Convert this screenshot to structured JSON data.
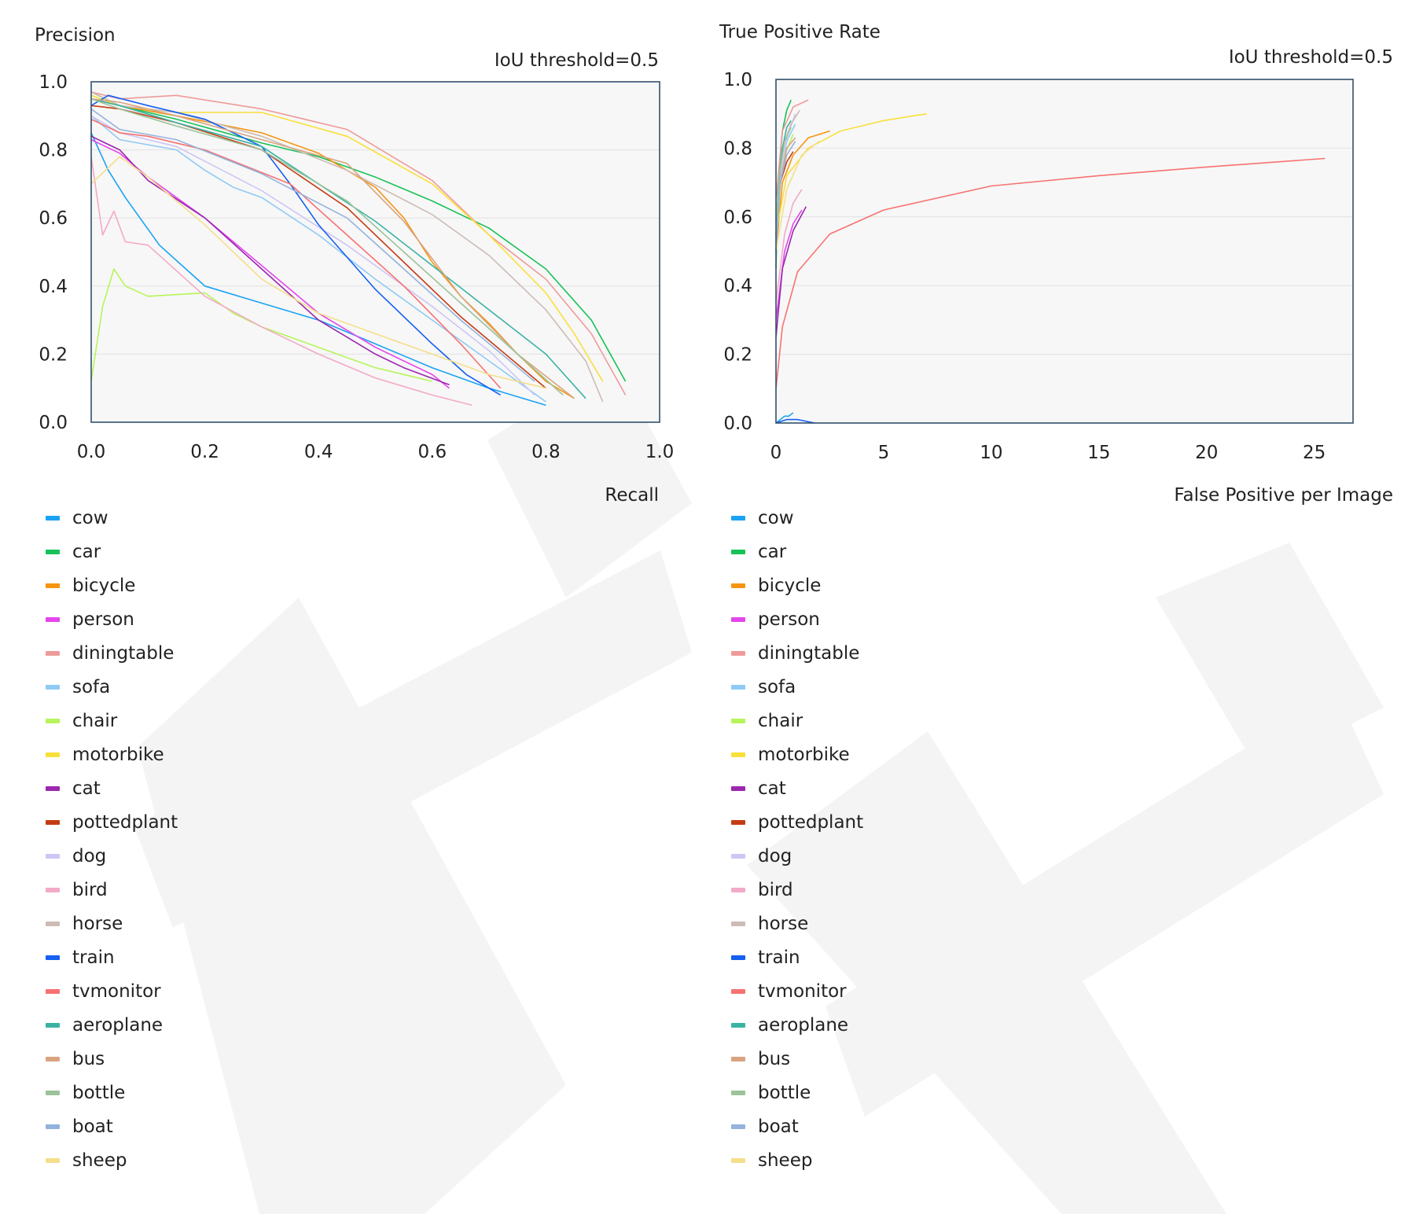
{
  "classes": [
    {
      "name": "cow",
      "color": "#1aa3f5"
    },
    {
      "name": "car",
      "color": "#17c257"
    },
    {
      "name": "bicycle",
      "color": "#f5950f"
    },
    {
      "name": "person",
      "color": "#e446ee"
    },
    {
      "name": "diningtable",
      "color": "#ef9a9a"
    },
    {
      "name": "sofa",
      "color": "#8fcaf5"
    },
    {
      "name": "chair",
      "color": "#b6f55a"
    },
    {
      "name": "motorbike",
      "color": "#f8e03a"
    },
    {
      "name": "cat",
      "color": "#9c27b0"
    },
    {
      "name": "pottedplant",
      "color": "#c43c14"
    },
    {
      "name": "dog",
      "color": "#cdc6f5"
    },
    {
      "name": "bird",
      "color": "#f3a9c8"
    },
    {
      "name": "horse",
      "color": "#cdbcb6"
    },
    {
      "name": "train",
      "color": "#1560f0"
    },
    {
      "name": "tvmonitor",
      "color": "#f77272"
    },
    {
      "name": "aeroplane",
      "color": "#3bb3a3"
    },
    {
      "name": "bus",
      "color": "#d8a480"
    },
    {
      "name": "bottle",
      "color": "#9cc39a"
    },
    {
      "name": "boat",
      "color": "#93b3dc"
    },
    {
      "name": "sheep",
      "color": "#f4df8a"
    }
  ],
  "chart_data": [
    {
      "type": "line",
      "ylabel": "Precision",
      "xlabel": "Recall",
      "annotation": "IoU threshold=0.5",
      "xlim": [
        0,
        1.0
      ],
      "ylim": [
        0,
        1.0
      ],
      "xticks": [
        "0.0",
        "0.2",
        "0.4",
        "0.6",
        "0.8",
        "1.0"
      ],
      "yticks": [
        "0.0",
        "0.2",
        "0.4",
        "0.6",
        "0.8",
        "1.0"
      ],
      "grid": "horizontal",
      "series": [
        {
          "name": "cow",
          "x": [
            0,
            0.03,
            0.06,
            0.12,
            0.2,
            0.3,
            0.4,
            0.5,
            0.6,
            0.7,
            0.8
          ],
          "y": [
            0.85,
            0.74,
            0.66,
            0.52,
            0.4,
            0.35,
            0.3,
            0.23,
            0.16,
            0.1,
            0.05
          ]
        },
        {
          "name": "car",
          "x": [
            0,
            0.05,
            0.15,
            0.3,
            0.4,
            0.5,
            0.6,
            0.7,
            0.8,
            0.88,
            0.94
          ],
          "y": [
            0.97,
            0.93,
            0.89,
            0.82,
            0.78,
            0.72,
            0.65,
            0.57,
            0.45,
            0.3,
            0.12
          ]
        },
        {
          "name": "bicycle",
          "x": [
            0,
            0.05,
            0.15,
            0.3,
            0.4,
            0.5,
            0.55,
            0.6,
            0.65,
            0.7,
            0.75,
            0.8,
            0.85
          ],
          "y": [
            0.95,
            0.93,
            0.9,
            0.85,
            0.79,
            0.69,
            0.6,
            0.47,
            0.37,
            0.29,
            0.2,
            0.12,
            0.07
          ]
        },
        {
          "name": "person",
          "x": [
            0,
            0.05,
            0.1,
            0.2,
            0.3,
            0.4,
            0.5,
            0.6,
            0.63
          ],
          "y": [
            0.83,
            0.79,
            0.72,
            0.6,
            0.46,
            0.32,
            0.22,
            0.14,
            0.1
          ]
        },
        {
          "name": "diningtable",
          "x": [
            0,
            0.05,
            0.15,
            0.3,
            0.45,
            0.6,
            0.7,
            0.8,
            0.88,
            0.94
          ],
          "y": [
            0.97,
            0.95,
            0.96,
            0.92,
            0.86,
            0.71,
            0.55,
            0.42,
            0.26,
            0.08
          ]
        },
        {
          "name": "sofa",
          "x": [
            0,
            0.05,
            0.15,
            0.2,
            0.25,
            0.3,
            0.4,
            0.5,
            0.6,
            0.7,
            0.8
          ],
          "y": [
            0.9,
            0.83,
            0.8,
            0.74,
            0.69,
            0.66,
            0.55,
            0.42,
            0.3,
            0.18,
            0.06
          ]
        },
        {
          "name": "chair",
          "x": [
            0,
            0.02,
            0.04,
            0.06,
            0.1,
            0.2,
            0.25,
            0.3,
            0.4,
            0.5,
            0.6
          ],
          "y": [
            0.12,
            0.34,
            0.45,
            0.4,
            0.37,
            0.38,
            0.32,
            0.28,
            0.22,
            0.16,
            0.12
          ]
        },
        {
          "name": "motorbike",
          "x": [
            0,
            0.05,
            0.15,
            0.3,
            0.45,
            0.6,
            0.7,
            0.8,
            0.85,
            0.9
          ],
          "y": [
            0.96,
            0.93,
            0.91,
            0.91,
            0.84,
            0.7,
            0.55,
            0.38,
            0.26,
            0.12
          ]
        },
        {
          "name": "cat",
          "x": [
            0,
            0.05,
            0.1,
            0.2,
            0.3,
            0.4,
            0.5,
            0.55,
            0.63
          ],
          "y": [
            0.84,
            0.8,
            0.71,
            0.6,
            0.45,
            0.3,
            0.2,
            0.16,
            0.11
          ]
        },
        {
          "name": "pottedplant",
          "x": [
            0,
            0.05,
            0.15,
            0.3,
            0.45,
            0.55,
            0.65,
            0.75,
            0.8
          ],
          "y": [
            0.93,
            0.92,
            0.88,
            0.8,
            0.63,
            0.47,
            0.31,
            0.17,
            0.1
          ]
        },
        {
          "name": "dog",
          "x": [
            0,
            0.05,
            0.15,
            0.3,
            0.45,
            0.6,
            0.7,
            0.78
          ],
          "y": [
            0.9,
            0.85,
            0.81,
            0.68,
            0.52,
            0.34,
            0.21,
            0.08
          ]
        },
        {
          "name": "bird",
          "x": [
            0,
            0.02,
            0.04,
            0.06,
            0.1,
            0.2,
            0.3,
            0.4,
            0.5,
            0.6,
            0.67
          ],
          "y": [
            0.78,
            0.55,
            0.62,
            0.53,
            0.52,
            0.37,
            0.28,
            0.2,
            0.13,
            0.08,
            0.05
          ]
        },
        {
          "name": "horse",
          "x": [
            0,
            0.05,
            0.15,
            0.3,
            0.45,
            0.6,
            0.7,
            0.8,
            0.87,
            0.9
          ],
          "y": [
            0.97,
            0.93,
            0.91,
            0.84,
            0.74,
            0.61,
            0.49,
            0.33,
            0.18,
            0.06
          ]
        },
        {
          "name": "train",
          "x": [
            0,
            0.03,
            0.1,
            0.2,
            0.3,
            0.35,
            0.4,
            0.5,
            0.6,
            0.66,
            0.72
          ],
          "y": [
            0.93,
            0.96,
            0.93,
            0.89,
            0.81,
            0.7,
            0.58,
            0.39,
            0.23,
            0.14,
            0.08
          ]
        },
        {
          "name": "tvmonitor",
          "x": [
            0,
            0.05,
            0.1,
            0.2,
            0.35,
            0.45,
            0.55,
            0.65,
            0.72
          ],
          "y": [
            0.89,
            0.85,
            0.84,
            0.8,
            0.7,
            0.55,
            0.4,
            0.23,
            0.1
          ]
        },
        {
          "name": "aeroplane",
          "x": [
            0,
            0.05,
            0.15,
            0.3,
            0.4,
            0.5,
            0.6,
            0.7,
            0.8,
            0.87
          ],
          "y": [
            0.95,
            0.93,
            0.88,
            0.81,
            0.7,
            0.59,
            0.46,
            0.33,
            0.2,
            0.07
          ]
        },
        {
          "name": "bus",
          "x": [
            0,
            0.05,
            0.15,
            0.3,
            0.45,
            0.55,
            0.65,
            0.75,
            0.85
          ],
          "y": [
            0.95,
            0.94,
            0.9,
            0.83,
            0.76,
            0.59,
            0.37,
            0.2,
            0.07
          ]
        },
        {
          "name": "bottle",
          "x": [
            0,
            0.05,
            0.15,
            0.3,
            0.45,
            0.55,
            0.65,
            0.75,
            0.83
          ],
          "y": [
            0.95,
            0.92,
            0.87,
            0.8,
            0.65,
            0.5,
            0.35,
            0.2,
            0.08
          ]
        },
        {
          "name": "boat",
          "x": [
            0,
            0.05,
            0.15,
            0.3,
            0.45,
            0.55,
            0.65,
            0.78
          ],
          "y": [
            0.92,
            0.86,
            0.83,
            0.73,
            0.6,
            0.45,
            0.3,
            0.12
          ]
        },
        {
          "name": "sheep",
          "x": [
            0,
            0.05,
            0.1,
            0.2,
            0.3,
            0.4,
            0.5,
            0.6,
            0.7,
            0.8
          ],
          "y": [
            0.7,
            0.78,
            0.72,
            0.58,
            0.42,
            0.32,
            0.26,
            0.2,
            0.14,
            0.1
          ]
        }
      ]
    },
    {
      "type": "line",
      "ylabel": "True Positive Rate",
      "xlabel": "False Positive per Image",
      "annotation": "IoU threshold=0.5",
      "xlim": [
        0,
        26.8
      ],
      "ylim": [
        0,
        1.0
      ],
      "xticks": [
        "0",
        "5",
        "10",
        "15",
        "20",
        "25"
      ],
      "yticks": [
        "0.0",
        "0.2",
        "0.4",
        "0.6",
        "0.8",
        "1.0"
      ],
      "grid": "horizontal",
      "series": [
        {
          "name": "cow",
          "x": [
            0,
            0.2,
            0.4,
            0.6,
            0.8
          ],
          "y": [
            0.0,
            0.01,
            0.02,
            0.02,
            0.03
          ]
        },
        {
          "name": "car",
          "x": [
            0,
            0.1,
            0.3,
            0.5,
            0.7
          ],
          "y": [
            0.45,
            0.7,
            0.85,
            0.91,
            0.94
          ]
        },
        {
          "name": "bicycle",
          "x": [
            0,
            0.3,
            0.8,
            1.5,
            2.5
          ],
          "y": [
            0.5,
            0.7,
            0.78,
            0.83,
            0.85
          ]
        },
        {
          "name": "person",
          "x": [
            0,
            0.4,
            0.8,
            1.2
          ],
          "y": [
            0.3,
            0.5,
            0.58,
            0.62
          ]
        },
        {
          "name": "diningtable",
          "x": [
            0,
            0.3,
            0.8,
            1.5
          ],
          "y": [
            0.65,
            0.85,
            0.92,
            0.94
          ]
        },
        {
          "name": "sofa",
          "x": [
            0,
            0.2,
            0.5,
            0.9
          ],
          "y": [
            0.55,
            0.72,
            0.82,
            0.87
          ]
        },
        {
          "name": "chair",
          "x": [
            0,
            0.4,
            0.8
          ],
          "y": [
            0.6,
            0.78,
            0.84
          ]
        },
        {
          "name": "motorbike",
          "x": [
            0,
            0.5,
            1.5,
            3,
            5,
            7
          ],
          "y": [
            0.55,
            0.72,
            0.8,
            0.85,
            0.88,
            0.9
          ]
        },
        {
          "name": "cat",
          "x": [
            0,
            0.3,
            0.8,
            1.4
          ],
          "y": [
            0.25,
            0.45,
            0.56,
            0.63
          ]
        },
        {
          "name": "pottedplant",
          "x": [
            0,
            0.2,
            0.5,
            0.8
          ],
          "y": [
            0.55,
            0.7,
            0.76,
            0.79
          ]
        },
        {
          "name": "dog",
          "x": [
            0,
            0.2,
            0.5,
            0.9
          ],
          "y": [
            0.55,
            0.72,
            0.83,
            0.9
          ]
        },
        {
          "name": "bird",
          "x": [
            0,
            0.4,
            0.8,
            1.2
          ],
          "y": [
            0.35,
            0.55,
            0.64,
            0.68
          ]
        },
        {
          "name": "horse",
          "x": [
            0,
            0.3,
            0.7,
            1.1
          ],
          "y": [
            0.6,
            0.8,
            0.87,
            0.91
          ]
        },
        {
          "name": "train",
          "x": [
            0,
            0.5,
            1.0,
            1.8
          ],
          "y": [
            0.0,
            0.01,
            0.01,
            0.0
          ]
        },
        {
          "name": "tvmonitor",
          "x": [
            0,
            0.3,
            1,
            2.5,
            5,
            10,
            15,
            20,
            25.5
          ],
          "y": [
            0.1,
            0.28,
            0.44,
            0.55,
            0.62,
            0.69,
            0.72,
            0.745,
            0.77
          ]
        },
        {
          "name": "aeroplane",
          "x": [
            0,
            0.1,
            0.3,
            0.5,
            0.7
          ],
          "y": [
            0.5,
            0.68,
            0.8,
            0.86,
            0.88
          ]
        },
        {
          "name": "bus",
          "x": [
            0,
            0.2,
            0.5,
            0.9
          ],
          "y": [
            0.55,
            0.7,
            0.8,
            0.83
          ]
        },
        {
          "name": "bottle",
          "x": [
            0,
            0.15,
            0.4,
            0.7
          ],
          "y": [
            0.55,
            0.72,
            0.82,
            0.86
          ]
        },
        {
          "name": "boat",
          "x": [
            0,
            0.2,
            0.5,
            0.9
          ],
          "y": [
            0.5,
            0.7,
            0.78,
            0.82
          ]
        },
        {
          "name": "sheep",
          "x": [
            0,
            0.5,
            1.2,
            2.0
          ],
          "y": [
            0.5,
            0.68,
            0.78,
            0.82
          ]
        }
      ]
    }
  ]
}
